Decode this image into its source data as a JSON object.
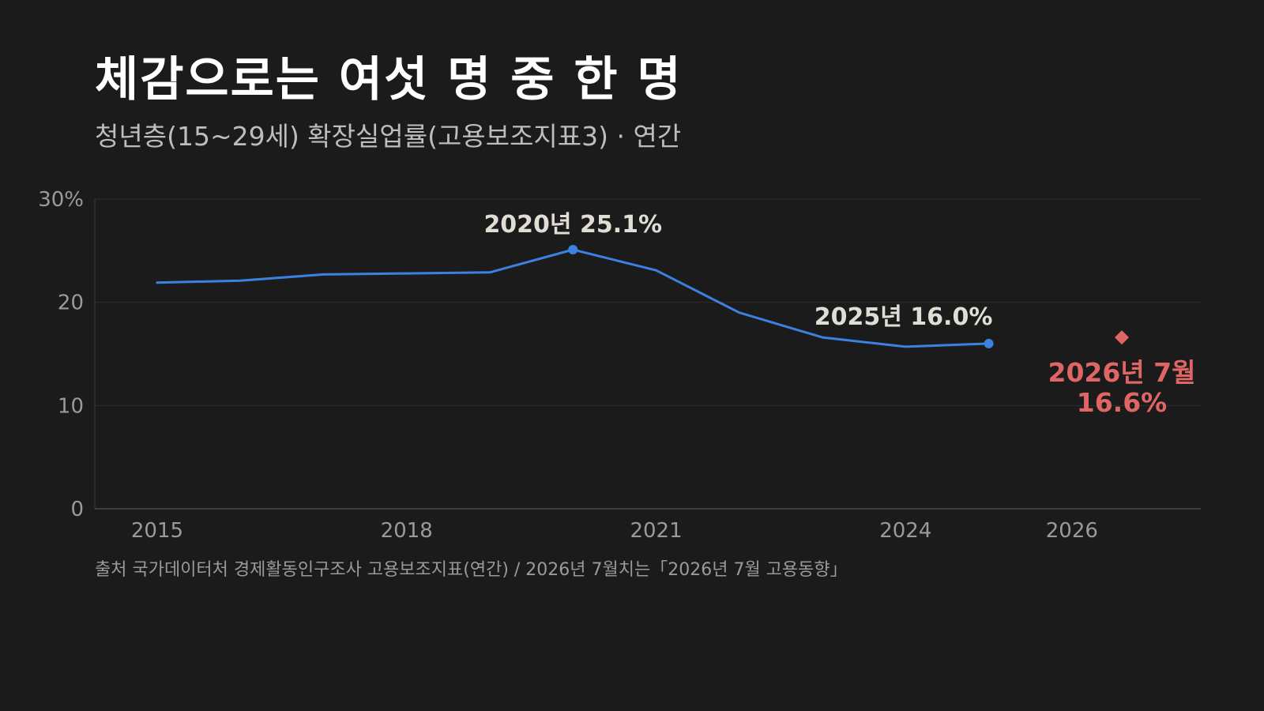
{
  "header": {
    "title": "체감으로는 여섯 명 중 한 명",
    "subtitle": "청년층(15~29세) 확장실업률(고용보조지표3) · 연간"
  },
  "footer": {
    "source": "출처 국가데이터처 경제활동인구조사 고용보조지표(연간) / 2026년 7월치는「2026년 7월 고용동향」"
  },
  "colors": {
    "background": "#1b1b1b",
    "line": "#3b82e0",
    "highlight": "#e06666",
    "annotation": "#e0ddd4"
  },
  "chart_data": {
    "type": "line",
    "title": "",
    "xlabel": "",
    "ylabel": "",
    "ylim": [
      0,
      30
    ],
    "xlim": [
      2014.25,
      2027.55
    ],
    "grid": true,
    "y_ticks": [
      {
        "value": 0,
        "label": "0"
      },
      {
        "value": 10,
        "label": "10"
      },
      {
        "value": 20,
        "label": "20"
      },
      {
        "value": 30,
        "label": "30%"
      }
    ],
    "x_ticks": [
      {
        "value": 2015,
        "label": "2015"
      },
      {
        "value": 2018,
        "label": "2018"
      },
      {
        "value": 2021,
        "label": "2021"
      },
      {
        "value": 2024,
        "label": "2024"
      },
      {
        "value": 2026,
        "label": "2026"
      }
    ],
    "series": [
      {
        "x": [
          2015,
          2016,
          2017,
          2018,
          2019,
          2020,
          2021,
          2022,
          2023,
          2024,
          2025
        ],
        "values": [
          21.9,
          22.1,
          22.7,
          22.8,
          22.9,
          25.1,
          23.1,
          19.0,
          16.6,
          15.7,
          16.0
        ]
      }
    ],
    "highlight_point": {
      "x": 2026.6,
      "value": 16.6
    },
    "annotations": [
      {
        "x": 2020,
        "value": 25.1,
        "text": "2020년 25.1%"
      },
      {
        "x": 2025,
        "value": 16.0,
        "text": "2025년 16.0%"
      },
      {
        "x": 2026.6,
        "value": 16.6,
        "line1": "2026년 7월",
        "line2": "16.6%"
      }
    ]
  }
}
